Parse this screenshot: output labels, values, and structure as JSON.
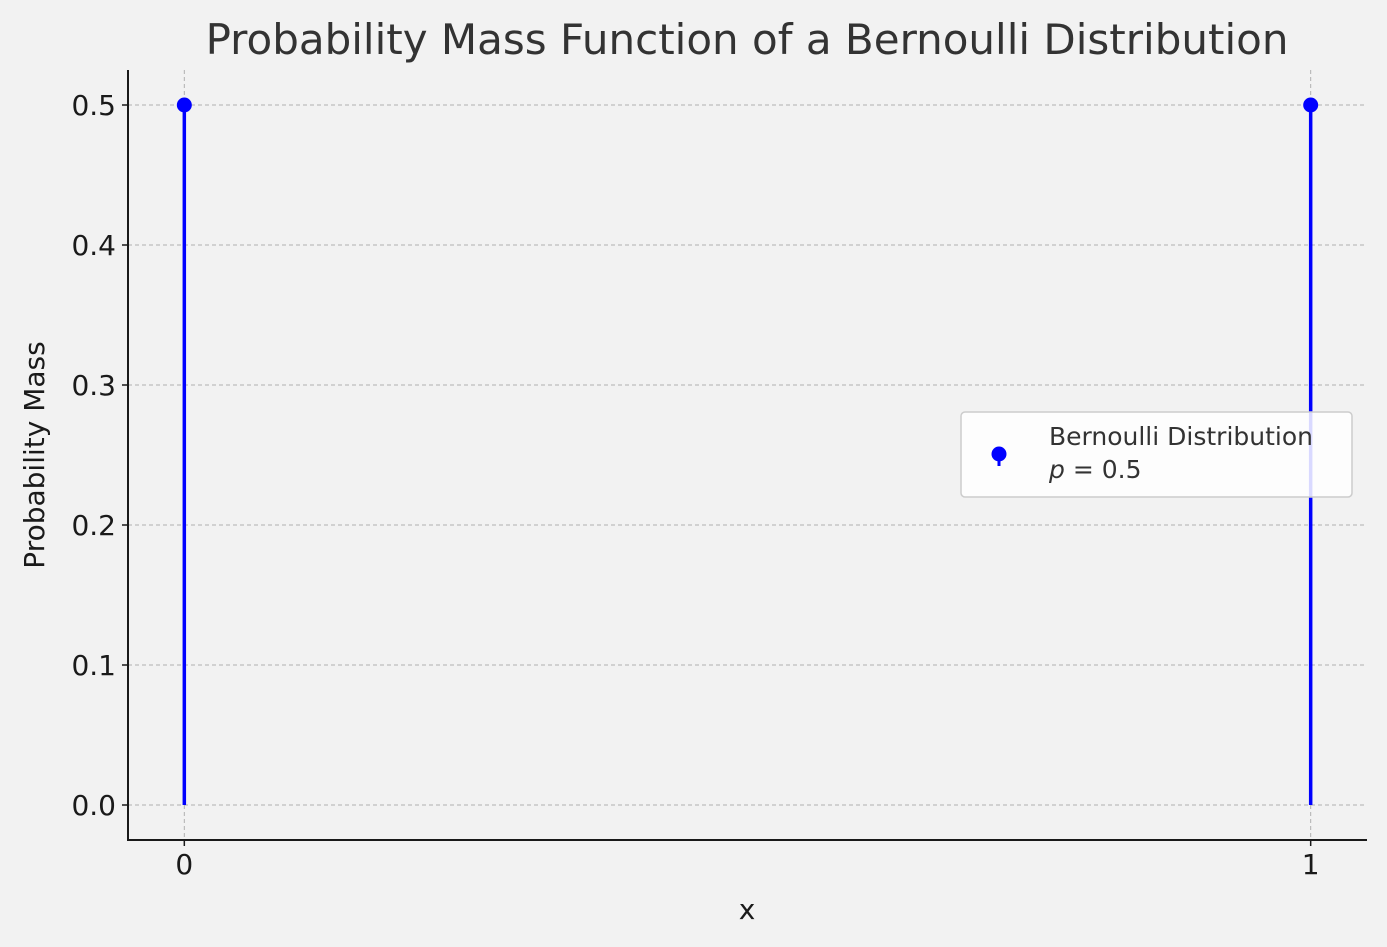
{
  "chart_data": {
    "type": "stem",
    "title": "Probability Mass Function of a Bernoulli Distribution",
    "xlabel": "x",
    "ylabel": "Probability Mass",
    "x": [
      0,
      1
    ],
    "values": [
      0.5,
      0.5
    ],
    "x_ticks": [
      "0",
      "1"
    ],
    "y_ticks": [
      "0.0",
      "0.1",
      "0.2",
      "0.3",
      "0.4",
      "0.5"
    ],
    "xlim": [
      -0.05,
      1.05
    ],
    "ylim": [
      -0.025,
      0.525
    ],
    "grid": true,
    "legend_position": "center-right",
    "series": [
      {
        "name": "Bernoulli Distribution",
        "name_line2_var": "p",
        "name_line2_rest": " = 0.5",
        "color": "#0000ff"
      }
    ]
  },
  "colors": {
    "background": "#f2f2f2",
    "grid": "#b0b0b0",
    "axis": "#1a1a1a",
    "series": "#0000ff"
  }
}
